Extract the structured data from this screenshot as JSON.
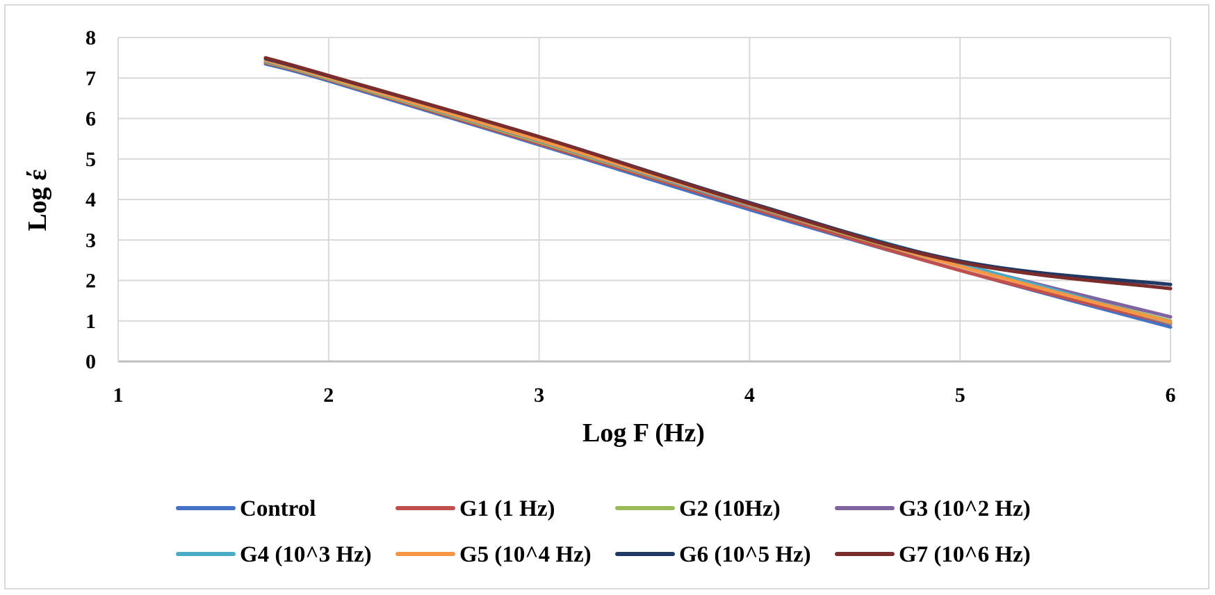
{
  "chart_data": {
    "type": "line",
    "title": "",
    "xlabel": "Log F (Hz)",
    "ylabel": "Log έ",
    "xlim": [
      1,
      6
    ],
    "ylim": [
      0,
      8
    ],
    "x_ticks": [
      "1",
      "2",
      "3",
      "4",
      "5",
      "6"
    ],
    "y_ticks": [
      "0",
      "1",
      "2",
      "3",
      "4",
      "5",
      "6",
      "7",
      "8"
    ],
    "grid": true,
    "legend_position": "bottom",
    "x": [
      1.7,
      2,
      3,
      4,
      5,
      6
    ],
    "series": [
      {
        "name": "Control",
        "color": "#4472c4",
        "values": [
          7.35,
          6.93,
          5.35,
          3.75,
          2.25,
          0.85
        ]
      },
      {
        "name": "G1 (1 Hz)",
        "color": "#c0504d",
        "values": [
          7.38,
          6.96,
          5.38,
          3.8,
          2.25,
          0.93
        ]
      },
      {
        "name": "G2 (10Hz)",
        "color": "#9bbb59",
        "values": [
          7.4,
          6.98,
          5.42,
          3.85,
          2.35,
          1.0
        ]
      },
      {
        "name": "G3 (10^2 Hz)",
        "color": "#8064a2",
        "values": [
          7.42,
          7.0,
          5.45,
          3.86,
          2.4,
          1.1
        ]
      },
      {
        "name": "G4 (10^3 Hz)",
        "color": "#4bacc6",
        "values": [
          7.43,
          7.0,
          5.46,
          3.87,
          2.42,
          0.95
        ]
      },
      {
        "name": "G5 (10^4 Hz)",
        "color": "#f79646",
        "values": [
          7.44,
          7.01,
          5.47,
          3.88,
          2.35,
          0.97
        ]
      },
      {
        "name": "G6 (10^5 Hz)",
        "color": "#1f3864",
        "values": [
          7.48,
          7.05,
          5.55,
          3.92,
          2.48,
          1.9
        ]
      },
      {
        "name": "G7 (10^6 Hz)",
        "color": "#7b2c2c",
        "values": [
          7.5,
          7.06,
          5.55,
          3.9,
          2.45,
          1.8
        ]
      }
    ]
  }
}
